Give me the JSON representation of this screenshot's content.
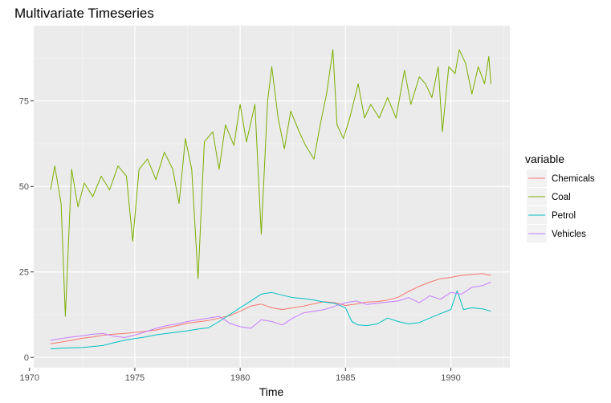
{
  "chart_data": {
    "type": "line",
    "title": "Multivariate Timeseries",
    "xlabel": "Time",
    "ylabel": "",
    "xlim": [
      1970.2,
      1992.8
    ],
    "ylim": [
      -3,
      97
    ],
    "x_ticks": [
      1970,
      1975,
      1980,
      1985,
      1990
    ],
    "y_ticks": [
      0,
      25,
      50,
      75
    ],
    "grid": true,
    "legend": {
      "title": "variable",
      "position": "right"
    },
    "series": [
      {
        "name": "Chemicals",
        "color": "#f8766d",
        "points": [
          [
            1971.0,
            4.0
          ],
          [
            1971.5,
            4.5
          ],
          [
            1972.0,
            5.0
          ],
          [
            1972.5,
            5.6
          ],
          [
            1973.0,
            6.0
          ],
          [
            1973.5,
            6.5
          ],
          [
            1974.0,
            6.8
          ],
          [
            1974.5,
            7.0
          ],
          [
            1975.0,
            7.3
          ],
          [
            1975.5,
            7.6
          ],
          [
            1976.0,
            8.0
          ],
          [
            1976.5,
            8.7
          ],
          [
            1977.0,
            9.3
          ],
          [
            1977.5,
            10.0
          ],
          [
            1978.0,
            10.4
          ],
          [
            1978.5,
            10.8
          ],
          [
            1979.0,
            11.5
          ],
          [
            1979.5,
            12.2
          ],
          [
            1980.0,
            13.5
          ],
          [
            1980.5,
            15.0
          ],
          [
            1981.0,
            15.6
          ],
          [
            1981.5,
            14.5
          ],
          [
            1982.0,
            14.0
          ],
          [
            1982.5,
            14.5
          ],
          [
            1983.0,
            15.0
          ],
          [
            1983.5,
            15.7
          ],
          [
            1984.0,
            16.3
          ],
          [
            1984.5,
            16.0
          ],
          [
            1985.0,
            15.2
          ],
          [
            1985.5,
            15.6
          ],
          [
            1986.0,
            16.2
          ],
          [
            1986.5,
            16.3
          ],
          [
            1987.0,
            16.8
          ],
          [
            1987.5,
            17.6
          ],
          [
            1988.0,
            19.3
          ],
          [
            1988.5,
            20.8
          ],
          [
            1989.0,
            22.0
          ],
          [
            1989.5,
            23.0
          ],
          [
            1990.0,
            23.4
          ],
          [
            1990.5,
            24.0
          ],
          [
            1991.0,
            24.3
          ],
          [
            1991.5,
            24.5
          ],
          [
            1991.9,
            24.0
          ]
        ]
      },
      {
        "name": "Coal",
        "color": "#7cae00",
        "points": [
          [
            1971.0,
            49
          ],
          [
            1971.2,
            56
          ],
          [
            1971.5,
            45
          ],
          [
            1971.7,
            12
          ],
          [
            1972.0,
            55
          ],
          [
            1972.3,
            44
          ],
          [
            1972.6,
            51
          ],
          [
            1973.0,
            47
          ],
          [
            1973.4,
            53
          ],
          [
            1973.8,
            49
          ],
          [
            1974.2,
            56
          ],
          [
            1974.6,
            53
          ],
          [
            1974.9,
            34
          ],
          [
            1975.2,
            55
          ],
          [
            1975.6,
            58
          ],
          [
            1976.0,
            52
          ],
          [
            1976.4,
            60
          ],
          [
            1976.8,
            55
          ],
          [
            1977.1,
            45
          ],
          [
            1977.4,
            64
          ],
          [
            1977.7,
            55
          ],
          [
            1978.0,
            23
          ],
          [
            1978.3,
            63
          ],
          [
            1978.7,
            66
          ],
          [
            1979.0,
            55
          ],
          [
            1979.3,
            68
          ],
          [
            1979.7,
            62
          ],
          [
            1980.0,
            74
          ],
          [
            1980.3,
            63
          ],
          [
            1980.7,
            74
          ],
          [
            1981.0,
            36
          ],
          [
            1981.3,
            75
          ],
          [
            1981.5,
            85
          ],
          [
            1981.8,
            70
          ],
          [
            1982.1,
            61
          ],
          [
            1982.4,
            72
          ],
          [
            1982.8,
            66
          ],
          [
            1983.1,
            62
          ],
          [
            1983.5,
            58
          ],
          [
            1983.8,
            68
          ],
          [
            1984.1,
            77
          ],
          [
            1984.4,
            90
          ],
          [
            1984.6,
            68
          ],
          [
            1984.9,
            64
          ],
          [
            1985.2,
            70
          ],
          [
            1985.6,
            80
          ],
          [
            1985.9,
            70
          ],
          [
            1986.2,
            74
          ],
          [
            1986.6,
            70
          ],
          [
            1987.0,
            76
          ],
          [
            1987.4,
            70
          ],
          [
            1987.8,
            84
          ],
          [
            1988.1,
            74
          ],
          [
            1988.5,
            82
          ],
          [
            1988.8,
            80
          ],
          [
            1989.1,
            76
          ],
          [
            1989.4,
            85
          ],
          [
            1989.6,
            66
          ],
          [
            1989.9,
            85
          ],
          [
            1990.2,
            83
          ],
          [
            1990.4,
            90
          ],
          [
            1990.7,
            86
          ],
          [
            1991.0,
            77
          ],
          [
            1991.3,
            85
          ],
          [
            1991.6,
            80
          ],
          [
            1991.8,
            88
          ],
          [
            1991.9,
            80
          ]
        ]
      },
      {
        "name": "Petrol",
        "color": "#00bfc4",
        "points": [
          [
            1971.0,
            2.5
          ],
          [
            1971.5,
            2.7
          ],
          [
            1972.0,
            2.8
          ],
          [
            1972.5,
            2.9
          ],
          [
            1973.0,
            3.2
          ],
          [
            1973.5,
            3.5
          ],
          [
            1974.0,
            4.3
          ],
          [
            1974.5,
            5.0
          ],
          [
            1975.0,
            5.5
          ],
          [
            1975.5,
            6.0
          ],
          [
            1976.0,
            6.6
          ],
          [
            1976.5,
            7.0
          ],
          [
            1977.0,
            7.4
          ],
          [
            1977.5,
            7.8
          ],
          [
            1978.0,
            8.3
          ],
          [
            1978.5,
            8.7
          ],
          [
            1979.0,
            10.5
          ],
          [
            1979.5,
            12.5
          ],
          [
            1980.0,
            14.5
          ],
          [
            1980.5,
            16.5
          ],
          [
            1981.0,
            18.5
          ],
          [
            1981.5,
            19.0
          ],
          [
            1982.0,
            18.2
          ],
          [
            1982.5,
            17.5
          ],
          [
            1983.0,
            17.2
          ],
          [
            1983.5,
            16.8
          ],
          [
            1984.0,
            16.2
          ],
          [
            1984.5,
            15.8
          ],
          [
            1985.0,
            14.5
          ],
          [
            1985.3,
            10.5
          ],
          [
            1985.6,
            9.5
          ],
          [
            1986.0,
            9.3
          ],
          [
            1986.5,
            9.8
          ],
          [
            1987.0,
            11.5
          ],
          [
            1987.5,
            10.5
          ],
          [
            1988.0,
            9.8
          ],
          [
            1988.5,
            10.2
          ],
          [
            1989.0,
            11.5
          ],
          [
            1989.5,
            12.8
          ],
          [
            1990.0,
            14.0
          ],
          [
            1990.3,
            19.5
          ],
          [
            1990.6,
            14.0
          ],
          [
            1991.0,
            14.5
          ],
          [
            1991.5,
            14.2
          ],
          [
            1991.9,
            13.5
          ]
        ]
      },
      {
        "name": "Vehicles",
        "color": "#c77cff",
        "points": [
          [
            1971.0,
            5.0
          ],
          [
            1971.5,
            5.5
          ],
          [
            1972.0,
            6.0
          ],
          [
            1972.5,
            6.3
          ],
          [
            1973.0,
            6.8
          ],
          [
            1973.5,
            7.0
          ],
          [
            1974.0,
            6.2
          ],
          [
            1974.5,
            5.8
          ],
          [
            1975.0,
            6.5
          ],
          [
            1975.5,
            7.5
          ],
          [
            1976.0,
            8.5
          ],
          [
            1976.5,
            9.3
          ],
          [
            1977.0,
            9.8
          ],
          [
            1977.5,
            10.5
          ],
          [
            1978.0,
            11.0
          ],
          [
            1978.5,
            11.5
          ],
          [
            1979.0,
            12.0
          ],
          [
            1979.5,
            10.0
          ],
          [
            1980.0,
            9.0
          ],
          [
            1980.5,
            8.5
          ],
          [
            1981.0,
            11.0
          ],
          [
            1981.5,
            10.5
          ],
          [
            1982.0,
            9.5
          ],
          [
            1982.5,
            11.5
          ],
          [
            1983.0,
            13.0
          ],
          [
            1983.5,
            13.5
          ],
          [
            1984.0,
            14.0
          ],
          [
            1984.5,
            15.0
          ],
          [
            1985.0,
            16.0
          ],
          [
            1985.5,
            16.5
          ],
          [
            1986.0,
            15.5
          ],
          [
            1986.5,
            15.8
          ],
          [
            1987.0,
            16.2
          ],
          [
            1987.5,
            16.5
          ],
          [
            1988.0,
            17.5
          ],
          [
            1988.5,
            16.0
          ],
          [
            1989.0,
            18.0
          ],
          [
            1989.5,
            17.0
          ],
          [
            1990.0,
            19.0
          ],
          [
            1990.5,
            18.5
          ],
          [
            1991.0,
            20.5
          ],
          [
            1991.5,
            21.0
          ],
          [
            1991.9,
            22.0
          ]
        ]
      }
    ]
  }
}
